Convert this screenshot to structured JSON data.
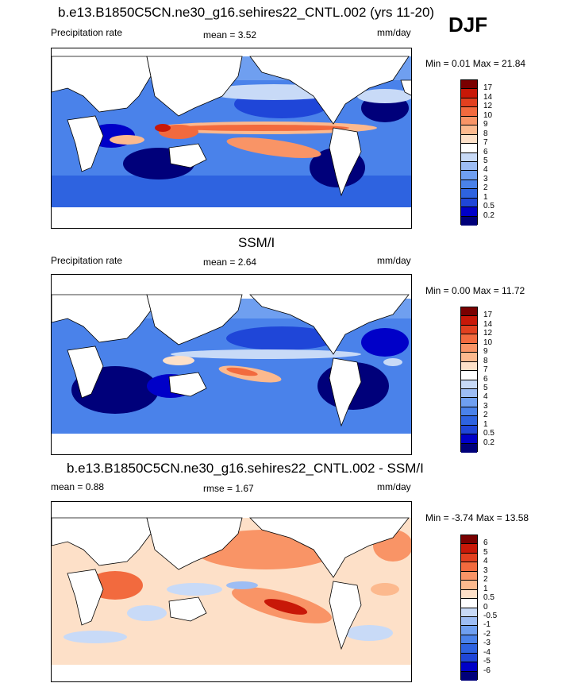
{
  "season": "DJF",
  "panels": [
    {
      "title": "b.e13.B1850C5CN.ne30_g16.sehires22_CNTL.002 (yrs 11-20)",
      "left_label": "Precipitation rate",
      "mid_label": "mean =   3.52",
      "units": "mm/day",
      "minmax": "Min =   0.01 Max =  21.84",
      "colorbar_labels": [
        "17",
        "14",
        "12",
        "10",
        "9",
        "8",
        "7",
        "6",
        "5",
        "4",
        "3",
        "2",
        "1",
        "0.5",
        "0.2"
      ]
    },
    {
      "title": "SSM/I",
      "left_label": "Precipitation rate",
      "mid_label": "mean =   2.64",
      "units": "mm/day",
      "minmax": "Min =   0.00 Max =  11.72",
      "colorbar_labels": [
        "17",
        "14",
        "12",
        "10",
        "9",
        "8",
        "7",
        "6",
        "5",
        "4",
        "3",
        "2",
        "1",
        "0.5",
        "0.2"
      ]
    },
    {
      "title": "b.e13.B1850C5CN.ne30_g16.sehires22_CNTL.002 - SSM/I",
      "left_label": "mean =   0.88",
      "mid_label": "rmse =   1.67",
      "units": "mm/day",
      "minmax": "Min =  -3.74 Max =  13.58",
      "colorbar_labels": [
        "6",
        "5",
        "4",
        "3",
        "2",
        "1",
        "0.5",
        "0",
        "-0.5",
        "-1",
        "-2",
        "-3",
        "-4",
        "-5",
        "-6"
      ]
    }
  ],
  "chart_data": [
    {
      "type": "heatmap",
      "title": "b.e13.B1850C5CN.ne30_g16.sehires22_CNTL.002 (yrs 11-20)",
      "variable": "Precipitation rate",
      "units": "mm/day",
      "mean": 3.52,
      "min": 0.01,
      "max": 21.84,
      "levels": [
        0.2,
        0.5,
        1,
        2,
        3,
        4,
        5,
        6,
        7,
        8,
        9,
        10,
        12,
        14,
        17
      ],
      "palette": [
        "#00007a",
        "#0000c8",
        "#1f46d8",
        "#2e63e0",
        "#4a82ea",
        "#6f9ff0",
        "#9dbdf4",
        "#c8daf7",
        "#ffffff",
        "#fde0c8",
        "#fcb98e",
        "#f99466",
        "#f26a3e",
        "#e2401f",
        "#c81808",
        "#7a0000"
      ]
    },
    {
      "type": "heatmap",
      "title": "SSM/I",
      "variable": "Precipitation rate",
      "units": "mm/day",
      "mean": 2.64,
      "min": 0.0,
      "max": 11.72,
      "levels": [
        0.2,
        0.5,
        1,
        2,
        3,
        4,
        5,
        6,
        7,
        8,
        9,
        10,
        12,
        14,
        17
      ],
      "palette": [
        "#00007a",
        "#0000c8",
        "#1f46d8",
        "#2e63e0",
        "#4a82ea",
        "#6f9ff0",
        "#9dbdf4",
        "#c8daf7",
        "#ffffff",
        "#fde0c8",
        "#fcb98e",
        "#f99466",
        "#f26a3e",
        "#e2401f",
        "#c81808",
        "#7a0000"
      ]
    },
    {
      "type": "heatmap",
      "title": "b.e13.B1850C5CN.ne30_g16.sehires22_CNTL.002 - SSM/I",
      "units": "mm/day",
      "mean": 0.88,
      "rmse": 1.67,
      "min": -3.74,
      "max": 13.58,
      "levels": [
        -6,
        -5,
        -4,
        -3,
        -2,
        -1,
        -0.5,
        0,
        0.5,
        1,
        2,
        3,
        4,
        5,
        6
      ],
      "palette": [
        "#00007a",
        "#0000c8",
        "#1f46d8",
        "#2e63e0",
        "#4a82ea",
        "#6f9ff0",
        "#9dbdf4",
        "#c8daf7",
        "#ffffff",
        "#fde0c8",
        "#fcb98e",
        "#f99466",
        "#f26a3e",
        "#e2401f",
        "#c81808",
        "#7a0000"
      ]
    }
  ]
}
